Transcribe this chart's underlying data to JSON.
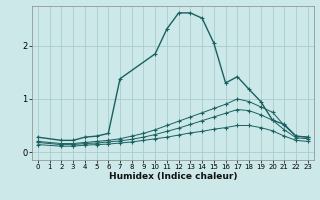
{
  "xlabel": "Humidex (Indice chaleur)",
  "bg_color": "#cce8e8",
  "grid_color": "#aacccc",
  "line_color": "#1a6060",
  "xlim": [
    -0.5,
    23.5
  ],
  "ylim": [
    -0.15,
    2.75
  ],
  "yticks": [
    0,
    1,
    2
  ],
  "xticks": [
    0,
    1,
    2,
    3,
    4,
    5,
    6,
    7,
    8,
    9,
    10,
    11,
    12,
    13,
    14,
    15,
    16,
    17,
    18,
    19,
    20,
    21,
    22,
    23
  ],
  "series": [
    {
      "x": [
        0,
        2,
        3,
        4,
        5,
        6,
        7,
        10,
        11,
        12,
        13,
        14,
        15,
        16,
        17,
        18,
        19,
        20,
        21,
        22,
        23
      ],
      "y": [
        0.28,
        0.22,
        0.22,
        0.28,
        0.3,
        0.35,
        1.38,
        1.85,
        2.32,
        2.62,
        2.62,
        2.52,
        2.05,
        1.3,
        1.42,
        1.18,
        0.95,
        0.6,
        0.52,
        0.3,
        0.28
      ]
    },
    {
      "x": [
        0,
        2,
        3,
        4,
        5,
        6,
        7,
        8,
        9,
        10,
        11,
        12,
        13,
        14,
        15,
        16,
        17,
        18,
        19,
        20,
        21,
        22,
        23
      ],
      "y": [
        0.2,
        0.16,
        0.16,
        0.18,
        0.2,
        0.22,
        0.25,
        0.3,
        0.35,
        0.42,
        0.5,
        0.58,
        0.66,
        0.74,
        0.82,
        0.9,
        1.0,
        0.95,
        0.85,
        0.75,
        0.5,
        0.3,
        0.28
      ]
    },
    {
      "x": [
        0,
        2,
        3,
        4,
        5,
        6,
        7,
        8,
        9,
        10,
        11,
        12,
        13,
        14,
        15,
        16,
        17,
        18,
        19,
        20,
        21,
        22,
        23
      ],
      "y": [
        0.18,
        0.14,
        0.14,
        0.16,
        0.17,
        0.19,
        0.21,
        0.24,
        0.28,
        0.33,
        0.39,
        0.45,
        0.52,
        0.59,
        0.66,
        0.73,
        0.8,
        0.78,
        0.7,
        0.6,
        0.42,
        0.27,
        0.25
      ]
    },
    {
      "x": [
        0,
        2,
        3,
        4,
        5,
        6,
        7,
        8,
        9,
        10,
        11,
        12,
        13,
        14,
        15,
        16,
        17,
        18,
        19,
        20,
        21,
        22,
        23
      ],
      "y": [
        0.14,
        0.11,
        0.11,
        0.13,
        0.14,
        0.15,
        0.17,
        0.19,
        0.22,
        0.25,
        0.28,
        0.32,
        0.36,
        0.39,
        0.43,
        0.46,
        0.5,
        0.5,
        0.46,
        0.4,
        0.3,
        0.22,
        0.2
      ]
    }
  ]
}
